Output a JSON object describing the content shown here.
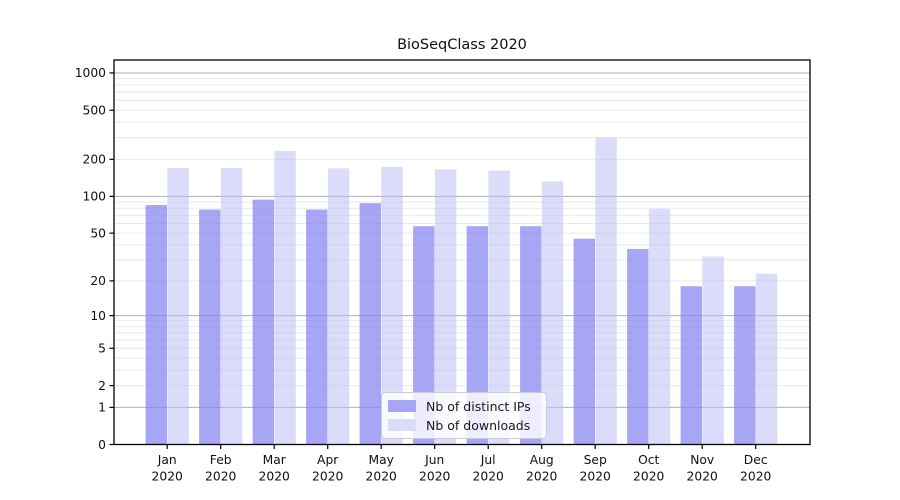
{
  "window": {
    "title": "BioSeqClass 2020"
  },
  "chart_data": {
    "type": "bar",
    "title": "BioSeqClass 2020",
    "categories": [
      "Jan",
      "Feb",
      "Mar",
      "Apr",
      "May",
      "Jun",
      "Jul",
      "Aug",
      "Sep",
      "Oct",
      "Nov",
      "Dec"
    ],
    "year_label": "2020",
    "series": [
      {
        "name": "Nb of distinct IPs",
        "key": "ips",
        "color": "#8383f1",
        "alpha": 0.72,
        "values": [
          85,
          78,
          94,
          78,
          88,
          57,
          57,
          57,
          45,
          37,
          18,
          18
        ]
      },
      {
        "name": "Nb of downloads",
        "key": "downloads",
        "color": "#bebef6",
        "alpha": 0.55,
        "values": [
          170,
          170,
          234,
          169,
          174,
          166,
          162,
          132,
          300,
          79,
          32,
          23
        ]
      }
    ],
    "yscale": "log1p",
    "yticks": [
      0,
      1,
      2,
      5,
      10,
      20,
      50,
      100,
      200,
      500,
      1000
    ],
    "ytick_labels": [
      "0",
      "1",
      "2",
      "5",
      "10",
      "20",
      "50",
      "100",
      "200",
      "500",
      "1000"
    ],
    "minor_gridlines": [
      2,
      3,
      4,
      5,
      6,
      7,
      8,
      9,
      20,
      30,
      40,
      50,
      60,
      70,
      80,
      90,
      200,
      300,
      400,
      500,
      600,
      700,
      800,
      900
    ],
    "major_gridlines": [
      1,
      10,
      100,
      1000
    ],
    "ylim": [
      0,
      1100
    ],
    "grid": true,
    "legend_position": "lower-center",
    "colors": {
      "major_grid": "#b0b0b0",
      "minor_grid": "#eaeaea",
      "axis": "#000000",
      "text": "#111111"
    }
  }
}
